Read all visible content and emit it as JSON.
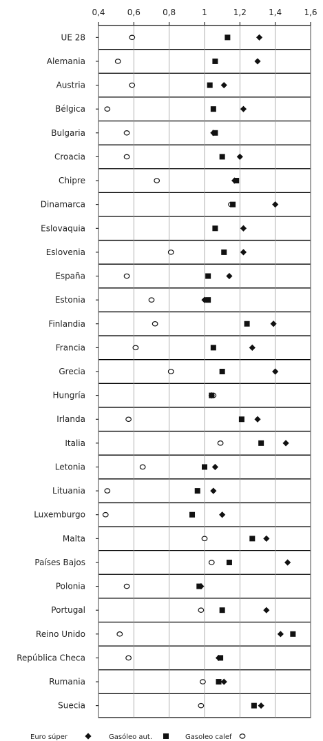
{
  "chart_data": {
    "type": "scatter",
    "orientation": "horizontal",
    "xlim": [
      0.4,
      1.6
    ],
    "x_ticks": [
      "0,4",
      "0,6",
      "0,8",
      "1",
      "1,2",
      "1,4",
      "1,6"
    ],
    "x_tick_values": [
      0.4,
      0.6,
      0.8,
      1.0,
      1.2,
      1.4,
      1.6
    ],
    "grid": true,
    "legend_position": "bottom",
    "categories": [
      "UE 28",
      "Alemania",
      "Austria",
      "Bélgica",
      "Bulgaria",
      "Croacia",
      "Chipre",
      "Dinamarca",
      "Eslovaquia",
      "Eslovenia",
      "España",
      "Estonia",
      "Finlandia",
      "Francia",
      "Grecia",
      "Hungría",
      "Irlanda",
      "Italia",
      "Letonia",
      "Lituania",
      "Luxemburgo",
      "Malta",
      "Países Bajos",
      "Polonia",
      "Portugal",
      "Reino Unido",
      "República Checa",
      "Rumania",
      "Suecia"
    ],
    "series": [
      {
        "name": "Euro súper",
        "marker": "diamond",
        "color": "#111111",
        "values": [
          1.31,
          1.3,
          1.11,
          1.22,
          1.05,
          1.2,
          1.17,
          1.4,
          1.22,
          1.22,
          1.14,
          1.0,
          1.39,
          1.27,
          1.4,
          1.04,
          1.3,
          1.46,
          1.06,
          1.05,
          1.1,
          1.35,
          1.47,
          0.98,
          1.35,
          1.43,
          1.08,
          1.11,
          1.32
        ]
      },
      {
        "name": "Gasóleo aut.",
        "marker": "square",
        "color": "#111111",
        "values": [
          1.13,
          1.06,
          1.03,
          1.05,
          1.06,
          1.1,
          1.18,
          1.16,
          1.06,
          1.11,
          1.02,
          1.02,
          1.24,
          1.05,
          1.1,
          1.04,
          1.21,
          1.32,
          1.0,
          0.96,
          0.93,
          1.27,
          1.14,
          0.97,
          1.1,
          1.5,
          1.09,
          1.08,
          1.28
        ]
      },
      {
        "name": "Gasoleo calef",
        "marker": "circle-open",
        "color": "#111111",
        "values": [
          0.59,
          0.51,
          0.59,
          0.45,
          0.56,
          0.56,
          0.73,
          1.15,
          null,
          0.81,
          0.56,
          0.7,
          0.72,
          0.61,
          0.81,
          1.05,
          0.57,
          1.09,
          0.65,
          0.45,
          0.44,
          1.0,
          1.04,
          0.56,
          0.98,
          0.52,
          0.57,
          0.99,
          0.98
        ]
      }
    ]
  }
}
